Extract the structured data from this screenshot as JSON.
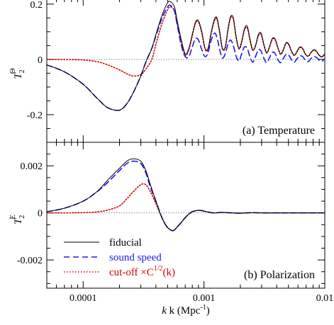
{
  "colors": {
    "fiducial": "#000000",
    "sound_speed": "#1a1aee",
    "cutoff": "#d40000",
    "zero_line": "#888888"
  },
  "chart_data": [
    {
      "type": "line",
      "panel_label": "(a) Temperature",
      "ylabel": "T",
      "ylabel_sub": "2",
      "ylabel_sup": "Θ",
      "xscale": "log",
      "xlim": [
        5e-05,
        0.01
      ],
      "ylim": [
        -0.3,
        0.22
      ],
      "yticks": [
        0.2,
        0,
        -0.2
      ],
      "yticklabels": [
        "0.2",
        "0",
        "-0.2"
      ],
      "series": [
        {
          "name": "fiducial",
          "key": "fiducial",
          "x": [
            5e-05,
            7e-05,
            0.0001,
            0.00013,
            0.00016,
            0.0002,
            0.00023,
            0.00026,
            0.0003,
            0.00033,
            0.00037,
            0.0004,
            0.00045,
            0.0005,
            0.00053,
            0.00057,
            0.0006,
            0.00065,
            0.0007,
            0.00075,
            0.0008,
            0.00085,
            0.0009,
            0.00096,
            0.00102,
            0.00108,
            0.00115,
            0.00122,
            0.00128,
            0.00135,
            0.00142,
            0.0015,
            0.00158,
            0.00166,
            0.00175,
            0.00185,
            0.00195,
            0.00205,
            0.00216,
            0.00228,
            0.0024,
            0.00253,
            0.00267,
            0.00282,
            0.00297,
            0.00313,
            0.0033,
            0.00348,
            0.00367,
            0.00387,
            0.00408,
            0.0043,
            0.00453,
            0.00478,
            0.00504,
            0.00531,
            0.0056,
            0.0059,
            0.00622,
            0.00656,
            0.00691,
            0.00729,
            0.00768,
            0.0081,
            0.00854,
            0.009,
            0.00949,
            0.01
          ],
          "y": [
            -0.02,
            -0.045,
            -0.09,
            -0.14,
            -0.175,
            -0.183,
            -0.16,
            -0.12,
            -0.06,
            -0.01,
            0.04,
            0.09,
            0.16,
            0.205,
            0.208,
            0.19,
            0.14,
            0.07,
            0.02,
            0.04,
            0.09,
            0.135,
            0.14,
            0.1,
            0.04,
            0.04,
            0.1,
            0.145,
            0.15,
            0.1,
            0.04,
            0.045,
            0.11,
            0.155,
            0.15,
            0.08,
            0.04,
            0.065,
            0.11,
            0.12,
            0.075,
            0.035,
            0.05,
            0.09,
            0.095,
            0.055,
            0.025,
            0.045,
            0.075,
            0.075,
            0.045,
            0.02,
            0.035,
            0.06,
            0.055,
            0.03,
            0.015,
            0.03,
            0.045,
            0.04,
            0.02,
            0.012,
            0.025,
            0.035,
            0.03,
            0.015,
            0.01,
            0.02
          ]
        },
        {
          "name": "sound speed",
          "key": "sound_speed",
          "x": [
            5e-05,
            7e-05,
            0.0001,
            0.00013,
            0.00016,
            0.0002,
            0.00023,
            0.00026,
            0.0003,
            0.00033,
            0.00037,
            0.0004,
            0.00045,
            0.0005,
            0.00053,
            0.00057,
            0.0006,
            0.00065,
            0.0007,
            0.00075,
            0.0008,
            0.00085,
            0.0009,
            0.00096,
            0.00102,
            0.00108,
            0.00115,
            0.00122,
            0.00128,
            0.00135,
            0.00142,
            0.0015,
            0.00158,
            0.00166,
            0.00175,
            0.00185,
            0.00195,
            0.00205,
            0.00216,
            0.00228,
            0.0024,
            0.00253,
            0.00267,
            0.00282,
            0.00297,
            0.00313,
            0.0033,
            0.00348,
            0.00367,
            0.00387,
            0.00408,
            0.0043,
            0.00453,
            0.00478,
            0.00504,
            0.00531,
            0.0056,
            0.0059,
            0.00622,
            0.00656,
            0.00691,
            0.00729,
            0.00768,
            0.0081,
            0.00854,
            0.009,
            0.00949,
            0.01
          ],
          "y": [
            -0.02,
            -0.045,
            -0.09,
            -0.14,
            -0.175,
            -0.184,
            -0.16,
            -0.12,
            -0.06,
            -0.01,
            0.04,
            0.085,
            0.15,
            0.19,
            0.195,
            0.175,
            0.125,
            0.05,
            0.01,
            0.01,
            0.045,
            0.075,
            0.07,
            0.035,
            0.01,
            0.025,
            0.07,
            0.095,
            0.08,
            0.035,
            0.005,
            0.02,
            0.055,
            0.07,
            0.05,
            0.01,
            -0.005,
            0.02,
            0.045,
            0.04,
            0.01,
            -0.01,
            0.01,
            0.035,
            0.03,
            0.005,
            -0.012,
            0.005,
            0.025,
            0.022,
            0.0,
            -0.012,
            0.003,
            0.018,
            0.015,
            -0.002,
            -0.01,
            0.003,
            0.013,
            0.01,
            -0.003,
            -0.008,
            0.003,
            0.01,
            0.007,
            -0.003,
            -0.006,
            0.002
          ]
        },
        {
          "name": "cut-off ×C^{1/2}(k)",
          "key": "cutoff",
          "x": [
            5e-05,
            7e-05,
            0.0001,
            0.00013,
            0.00016,
            0.0002,
            0.00023,
            0.00026,
            0.0003,
            0.00033,
            0.00037,
            0.0004,
            0.00045,
            0.0005,
            0.00053,
            0.00057,
            0.0006,
            0.00065,
            0.0007,
            0.00075,
            0.0008,
            0.00085,
            0.0009,
            0.00096,
            0.00102,
            0.00108,
            0.00115,
            0.00122,
            0.00128,
            0.00135,
            0.00142,
            0.0015,
            0.00158,
            0.00166,
            0.00175,
            0.00185,
            0.00195,
            0.00205,
            0.00216,
            0.00228,
            0.0024,
            0.00253,
            0.00267,
            0.00282,
            0.00297,
            0.00313,
            0.0033,
            0.00348,
            0.00367,
            0.00387,
            0.00408,
            0.0043,
            0.00453,
            0.00478,
            0.00504,
            0.00531,
            0.0056,
            0.0059,
            0.00622,
            0.00656,
            0.00691,
            0.00729,
            0.00768,
            0.0081,
            0.00854,
            0.009,
            0.00949,
            0.01
          ],
          "y": [
            0.0,
            -0.0005,
            -0.002,
            -0.008,
            -0.02,
            -0.038,
            -0.052,
            -0.06,
            -0.055,
            -0.035,
            0.0,
            0.055,
            0.13,
            0.18,
            0.19,
            0.175,
            0.13,
            0.06,
            0.015,
            0.035,
            0.085,
            0.13,
            0.135,
            0.095,
            0.038,
            0.035,
            0.095,
            0.14,
            0.145,
            0.095,
            0.038,
            0.042,
            0.105,
            0.15,
            0.145,
            0.075,
            0.038,
            0.06,
            0.105,
            0.115,
            0.07,
            0.033,
            0.048,
            0.085,
            0.09,
            0.052,
            0.023,
            0.043,
            0.072,
            0.072,
            0.043,
            0.018,
            0.033,
            0.058,
            0.052,
            0.028,
            0.014,
            0.028,
            0.043,
            0.038,
            0.019,
            0.011,
            0.024,
            0.033,
            0.028,
            0.014,
            0.009,
            0.019
          ]
        }
      ]
    },
    {
      "type": "line",
      "panel_label": "(b) Polarization",
      "ylabel": "T",
      "ylabel_sub": "2",
      "ylabel_sup": "E",
      "xscale": "log",
      "xlim": [
        5e-05,
        0.01
      ],
      "ylim": [
        -0.0032,
        0.003
      ],
      "yticks": [
        0.002,
        0,
        -0.002
      ],
      "yticklabels": [
        "0.002",
        "0",
        "-0.002"
      ],
      "xlabel": "k (Mpc",
      "xlabel_sup": "-1",
      "xlabel_close": ")",
      "xticks": [
        0.0001,
        0.001,
        0.01
      ],
      "xticklabels": [
        "0.0001",
        "0.001",
        "0.01"
      ],
      "series": [
        {
          "name": "fiducial",
          "key": "fiducial",
          "x": [
            5e-05,
            7e-05,
            0.0001,
            0.00013,
            0.00016,
            0.0002,
            0.00023,
            0.00026,
            0.0003,
            0.00033,
            0.00036,
            0.0004,
            0.00044,
            0.00048,
            0.00052,
            0.00056,
            0.0006,
            0.00065,
            0.0007,
            0.00075,
            0.0008,
            0.00087,
            0.00095,
            0.00105,
            0.0012,
            0.0014,
            0.0017,
            0.002,
            0.0025,
            0.003,
            0.004,
            0.005,
            0.007,
            0.01
          ],
          "y": [
            5e-05,
            0.0002,
            0.0005,
            0.0009,
            0.0014,
            0.0019,
            0.0022,
            0.0023,
            0.0022,
            0.0018,
            0.0012,
            0.0005,
            -0.0001,
            -0.0005,
            -0.0007,
            -0.00075,
            -0.0006,
            -0.0004,
            -0.0002,
            -5e-05,
            5e-05,
            0.0001,
            0.0001,
            5e-05,
            0.0,
            2e-05,
            0.0,
            -1e-05,
            1e-05,
            0.0,
            0.0,
            0.0,
            0.0,
            0.0
          ]
        },
        {
          "name": "sound speed",
          "key": "sound_speed",
          "x": [
            5e-05,
            7e-05,
            0.0001,
            0.00013,
            0.00016,
            0.0002,
            0.00023,
            0.00026,
            0.0003,
            0.00033,
            0.00036,
            0.0004,
            0.00044,
            0.00048,
            0.00052,
            0.00056,
            0.0006,
            0.00065,
            0.0007,
            0.00075,
            0.0008,
            0.00087,
            0.00095,
            0.00105,
            0.0012,
            0.0014,
            0.0017,
            0.002,
            0.0025,
            0.003,
            0.004,
            0.005,
            0.007,
            0.01
          ],
          "y": [
            5e-05,
            0.0002,
            0.0005,
            0.0009,
            0.0013,
            0.0018,
            0.0021,
            0.0022,
            0.0021,
            0.0017,
            0.0011,
            0.0005,
            -0.0001,
            -0.0005,
            -0.0007,
            -0.00075,
            -0.0006,
            -0.0004,
            -0.0002,
            -5e-05,
            5e-05,
            0.0001,
            0.0001,
            5e-05,
            0.0,
            2e-05,
            0.0,
            -1e-05,
            1e-05,
            0.0,
            0.0,
            0.0,
            0.0,
            0.0
          ]
        },
        {
          "name": "cut-off ×C^{1/2}(k)",
          "key": "cutoff",
          "x": [
            5e-05,
            7e-05,
            0.0001,
            0.00013,
            0.00016,
            0.0002,
            0.00023,
            0.00026,
            0.0003,
            0.00033,
            0.00036,
            0.0004,
            0.00044,
            0.00048,
            0.00052,
            0.00056,
            0.0006,
            0.00065,
            0.0007,
            0.00075,
            0.0008,
            0.00087,
            0.00095,
            0.00105,
            0.0012,
            0.0014,
            0.0017,
            0.002,
            0.0025,
            0.003,
            0.004,
            0.005,
            0.007,
            0.01
          ],
          "y": [
            0.0,
            0.0,
            1e-05,
            4e-05,
            0.00012,
            0.0003,
            0.0006,
            0.0009,
            0.0012,
            0.0012,
            0.0009,
            0.0004,
            -0.0001,
            -0.0005,
            -0.0007,
            -0.00075,
            -0.0006,
            -0.0004,
            -0.0002,
            -5e-05,
            5e-05,
            0.0001,
            0.0001,
            5e-05,
            0.0,
            2e-05,
            0.0,
            -1e-05,
            1e-05,
            0.0,
            0.0,
            0.0,
            0.0,
            0.0
          ]
        }
      ]
    }
  ],
  "legend": {
    "items": [
      {
        "key": "fiducial",
        "label": "fiducial"
      },
      {
        "key": "sound_speed",
        "label": "sound speed"
      },
      {
        "key": "cutoff",
        "label": "cut-off ×C",
        "sup": "1/2",
        "tail": "(k)"
      }
    ]
  }
}
